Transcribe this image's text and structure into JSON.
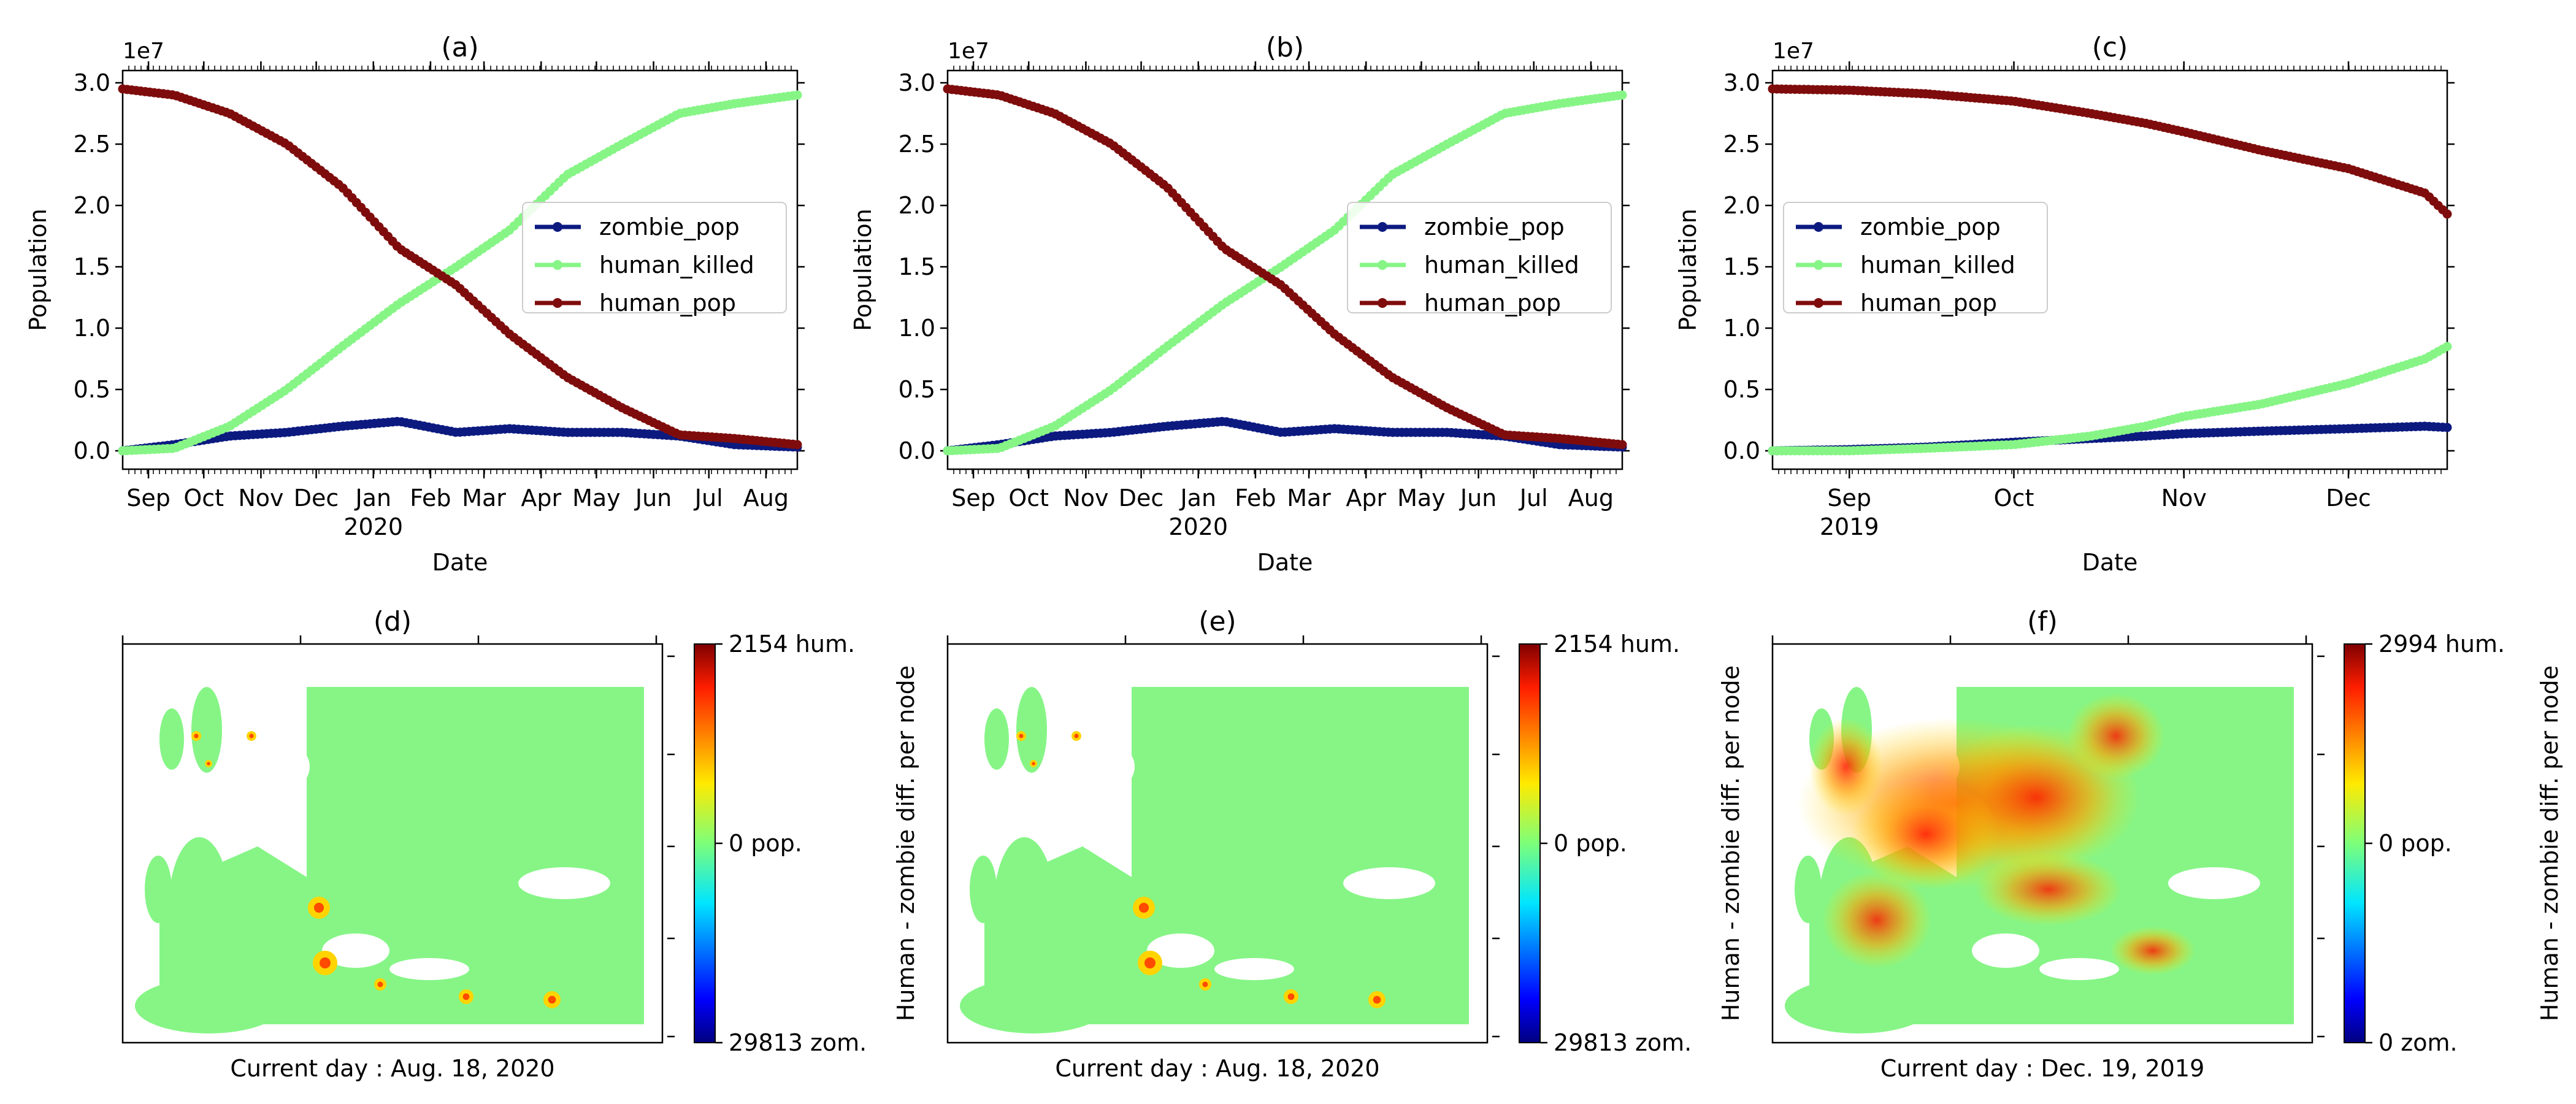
{
  "colors": {
    "zombie_pop": "#0c1a80",
    "human_killed": "#86f586",
    "human_pop": "#7f0c0c",
    "map_land": "#86f586"
  },
  "line_panels": [
    {
      "tag": "(a)",
      "ylabel": "Population",
      "xlabel": "Date",
      "offset_label": "1e7",
      "year_label": "2020",
      "year_after_tick": 4,
      "ticks": [
        "Sep",
        "Oct",
        "Nov",
        "Dec",
        "Jan",
        "Feb",
        "Mar",
        "Apr",
        "May",
        "Jun",
        "Jul",
        "Aug"
      ],
      "yticks": [
        "0.0",
        "0.5",
        "1.0",
        "1.5",
        "2.0",
        "2.5",
        "3.0"
      ],
      "legend": [
        "zombie_pop",
        "human_killed",
        "human_pop"
      ]
    },
    {
      "tag": "(b)",
      "ylabel": "Population",
      "xlabel": "Date",
      "offset_label": "1e7",
      "year_label": "2020",
      "year_after_tick": 4,
      "ticks": [
        "Sep",
        "Oct",
        "Nov",
        "Dec",
        "Jan",
        "Feb",
        "Mar",
        "Apr",
        "May",
        "Jun",
        "Jul",
        "Aug"
      ],
      "yticks": [
        "0.0",
        "0.5",
        "1.0",
        "1.5",
        "2.0",
        "2.5",
        "3.0"
      ],
      "legend": [
        "zombie_pop",
        "human_killed",
        "human_pop"
      ]
    },
    {
      "tag": "(c)",
      "ylabel": "Population",
      "xlabel": "Date",
      "offset_label": "1e7",
      "year_label": "2019",
      "year_after_tick": 0,
      "ticks": [
        "Sep",
        "Oct",
        "Nov",
        "Dec"
      ],
      "yticks": [
        "0.0",
        "0.5",
        "1.0",
        "1.5",
        "2.0",
        "2.5",
        "3.0"
      ],
      "legend": [
        "zombie_pop",
        "human_killed",
        "human_pop"
      ]
    }
  ],
  "map_panels": [
    {
      "tag": "(d)",
      "caption": "Current day : Aug. 18, 2020",
      "cbar_top": "2154 hum.",
      "cbar_mid": "0 pop.",
      "cbar_bottom": "29813 zom.",
      "cbar_label": "Human - zombie diff. per node"
    },
    {
      "tag": "(e)",
      "caption": "Current day : Aug. 18, 2020",
      "cbar_top": "2154 hum.",
      "cbar_mid": "0 pop.",
      "cbar_bottom": "29813 zom.",
      "cbar_label": "Human - zombie diff. per node"
    },
    {
      "tag": "(f)",
      "caption": "Current day : Dec. 19, 2019",
      "cbar_top": "2994 hum.",
      "cbar_mid": "0 pop.",
      "cbar_bottom": "0 zom.",
      "cbar_label": "Human - zombie diff. per node"
    }
  ],
  "chart_data": [
    {
      "type": "line",
      "title": "(a)",
      "xlabel": "Date",
      "ylabel": "Population",
      "y_scale": "1e7",
      "x": [
        "2019-08-18",
        "2019-09-15",
        "2019-10-15",
        "2019-11-15",
        "2019-12-15",
        "2020-01-15",
        "2020-02-15",
        "2020-03-15",
        "2020-04-15",
        "2020-05-15",
        "2020-06-15",
        "2020-07-15",
        "2020-08-18"
      ],
      "xlim": [
        "2019-08-18",
        "2020-08-18"
      ],
      "ylim": [
        -0.15,
        3.1
      ],
      "legend_position": "center-right",
      "series": [
        {
          "name": "zombie_pop",
          "values": [
            0.0,
            0.05,
            0.12,
            0.15,
            0.2,
            0.24,
            0.15,
            0.18,
            0.15,
            0.15,
            0.12,
            0.05,
            0.03
          ]
        },
        {
          "name": "human_killed",
          "values": [
            0.0,
            0.02,
            0.2,
            0.5,
            0.85,
            1.2,
            1.5,
            1.8,
            2.25,
            2.5,
            2.75,
            2.83,
            2.9
          ]
        },
        {
          "name": "human_pop",
          "values": [
            2.95,
            2.9,
            2.75,
            2.5,
            2.15,
            1.65,
            1.35,
            0.95,
            0.6,
            0.35,
            0.13,
            0.1,
            0.05
          ]
        }
      ]
    },
    {
      "type": "line",
      "title": "(b)",
      "xlabel": "Date",
      "ylabel": "Population",
      "y_scale": "1e7",
      "x": [
        "2019-08-18",
        "2019-09-15",
        "2019-10-15",
        "2019-11-15",
        "2019-12-15",
        "2020-01-15",
        "2020-02-15",
        "2020-03-15",
        "2020-04-15",
        "2020-05-15",
        "2020-06-15",
        "2020-07-15",
        "2020-08-18"
      ],
      "xlim": [
        "2019-08-18",
        "2020-08-18"
      ],
      "ylim": [
        -0.15,
        3.1
      ],
      "legend_position": "center-right",
      "series": [
        {
          "name": "zombie_pop",
          "values": [
            0.0,
            0.05,
            0.12,
            0.15,
            0.2,
            0.24,
            0.15,
            0.18,
            0.15,
            0.15,
            0.12,
            0.05,
            0.03
          ]
        },
        {
          "name": "human_killed",
          "values": [
            0.0,
            0.02,
            0.2,
            0.5,
            0.85,
            1.2,
            1.5,
            1.8,
            2.25,
            2.5,
            2.75,
            2.83,
            2.9
          ]
        },
        {
          "name": "human_pop",
          "values": [
            2.95,
            2.9,
            2.75,
            2.5,
            2.15,
            1.65,
            1.35,
            0.95,
            0.6,
            0.35,
            0.13,
            0.1,
            0.05
          ]
        }
      ]
    },
    {
      "type": "line",
      "title": "(c)",
      "xlabel": "Date",
      "ylabel": "Population",
      "y_scale": "1e7",
      "x": [
        "2019-08-18",
        "2019-09-01",
        "2019-09-15",
        "2019-10-01",
        "2019-10-15",
        "2019-10-25",
        "2019-11-01",
        "2019-11-15",
        "2019-12-01",
        "2019-12-15",
        "2019-12-19"
      ],
      "xlim": [
        "2019-08-18",
        "2019-12-19"
      ],
      "ylim": [
        -0.15,
        3.1
      ],
      "legend_position": "center-left",
      "series": [
        {
          "name": "zombie_pop",
          "values": [
            0.0,
            0.01,
            0.03,
            0.07,
            0.1,
            0.12,
            0.14,
            0.16,
            0.18,
            0.2,
            0.19
          ]
        },
        {
          "name": "human_killed",
          "values": [
            0.0,
            0.0,
            0.02,
            0.05,
            0.12,
            0.2,
            0.28,
            0.38,
            0.55,
            0.75,
            0.85
          ]
        },
        {
          "name": "human_pop",
          "values": [
            2.95,
            2.94,
            2.91,
            2.85,
            2.75,
            2.67,
            2.6,
            2.45,
            2.3,
            2.1,
            1.93
          ]
        }
      ]
    }
  ]
}
